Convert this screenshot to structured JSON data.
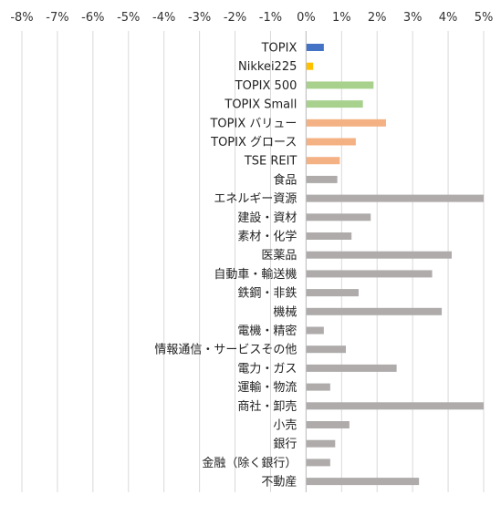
{
  "chart_data": {
    "type": "bar",
    "orientation": "horizontal",
    "title": "",
    "xlabel": "",
    "ylabel": "",
    "xlim": [
      -8,
      5
    ],
    "x_ticks": [
      -8,
      -7,
      -6,
      -5,
      -4,
      -3,
      -2,
      -1,
      0,
      1,
      2,
      3,
      4,
      5
    ],
    "x_tick_labels": [
      "-8%",
      "-7%",
      "-6%",
      "-5%",
      "-4%",
      "-3%",
      "-2%",
      "-1%",
      "0%",
      "1%",
      "2%",
      "3%",
      "4%",
      "5%"
    ],
    "grid": true,
    "legend": "none",
    "categories": [
      "TOPIX",
      "Nikkei225",
      "TOPIX 500",
      "TOPIX Small",
      "TOPIX バリュー",
      "TOPIX グロース",
      "TSE REIT",
      "食品",
      "エネルギー資源",
      "建設・資材",
      "素材・化学",
      "医薬品",
      "自動車・輸送機",
      "鉄鋼・非鉄",
      "機械",
      "電機・精密",
      "情報通信・サービスその他",
      "電力・ガス",
      "運輸・物流",
      "商社・卸売",
      "小売",
      "銀行",
      "金融（除く銀行）",
      "不動産"
    ],
    "values": [
      0.5,
      0.2,
      1.9,
      1.6,
      2.25,
      1.4,
      0.95,
      0.88,
      5.0,
      1.82,
      1.28,
      4.1,
      3.55,
      1.48,
      3.82,
      0.5,
      1.12,
      2.55,
      0.68,
      5.0,
      1.22,
      0.82,
      0.68,
      3.18
    ],
    "colors": [
      "#4472c4",
      "#ffc000",
      "#a9d18e",
      "#a9d18e",
      "#f4b183",
      "#f4b183",
      "#f4b183",
      "#afabab",
      "#afabab",
      "#afabab",
      "#afabab",
      "#afabab",
      "#afabab",
      "#afabab",
      "#afabab",
      "#afabab",
      "#afabab",
      "#afabab",
      "#afabab",
      "#afabab",
      "#afabab",
      "#afabab",
      "#afabab",
      "#afabab"
    ]
  }
}
